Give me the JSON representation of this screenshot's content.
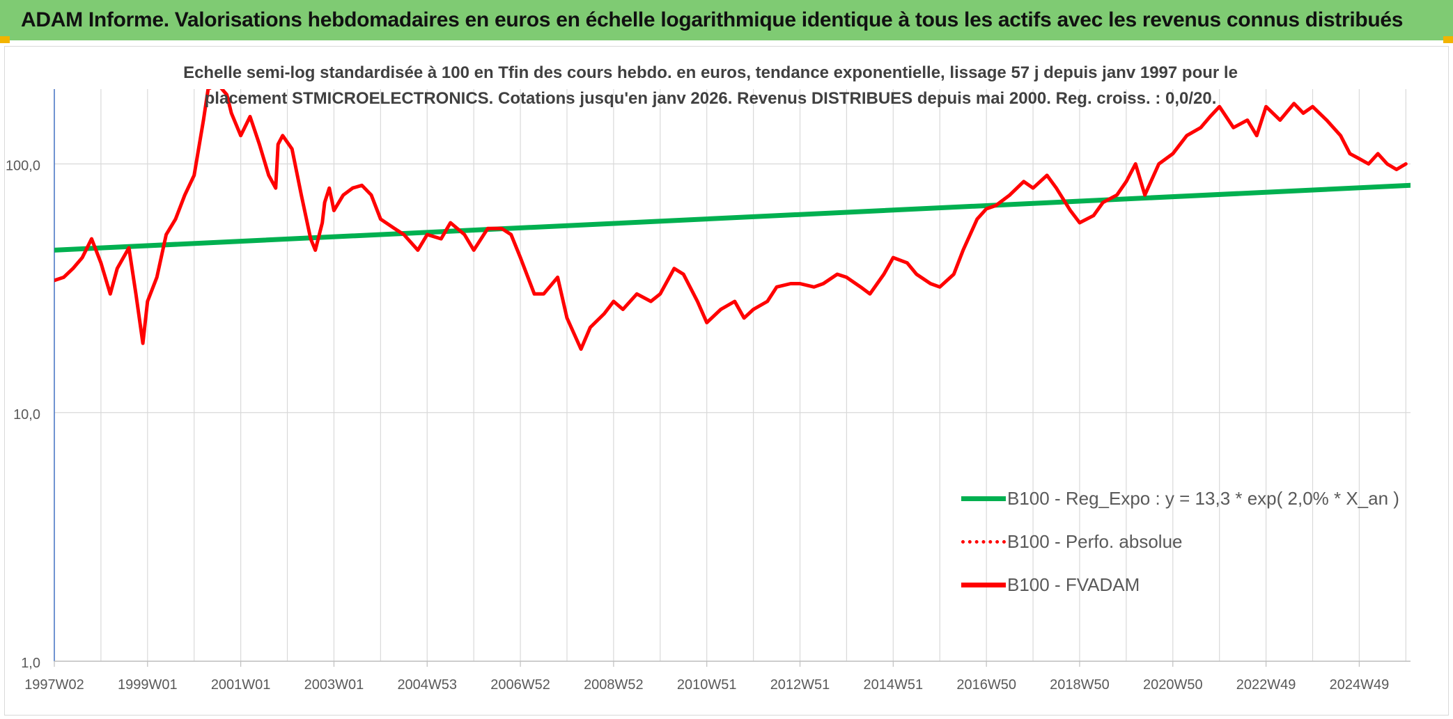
{
  "header": {
    "title": "ADAM Informe. Valorisations hebdomadaires en euros en échelle logarithmique identique à tous les actifs avec les revenus connus distribués"
  },
  "colors": {
    "banner": "#7fcb73",
    "trend": "#00b050",
    "series": "#ff0000",
    "grid": "#d9d9d9",
    "axis": "#4472c4"
  },
  "chart_data": {
    "type": "line",
    "subtitle_line1": "Echelle semi-log standardisée à 100 en Tfin des cours hebdo. en euros, tendance exponentielle, lissage 57 j depuis janv 1997 pour le",
    "subtitle_line2": "placement STMICROELECTRONICS. Cotations jusqu'en janv 2026. Revenus DISTRIBUES depuis mai 2000. Reg. croiss. : 0,0/20.",
    "y_scale": "log",
    "ylim": [
      1,
      200
    ],
    "y_ticks": [
      {
        "value": 1,
        "label": "1,0"
      },
      {
        "value": 10,
        "label": "10,0"
      },
      {
        "value": 100,
        "label": "100,0"
      }
    ],
    "xlim": [
      1997.0,
      2026.1
    ],
    "x_ticks": [
      {
        "value": 1997.0,
        "label": "1997W02"
      },
      {
        "value": 1999.0,
        "label": "1999W01"
      },
      {
        "value": 2001.0,
        "label": "2001W01"
      },
      {
        "value": 2003.0,
        "label": "2003W01"
      },
      {
        "value": 2005.0,
        "label": "2004W53"
      },
      {
        "value": 2007.0,
        "label": "2006W52"
      },
      {
        "value": 2009.0,
        "label": "2008W52"
      },
      {
        "value": 2011.0,
        "label": "2010W51"
      },
      {
        "value": 2013.0,
        "label": "2012W51"
      },
      {
        "value": 2015.0,
        "label": "2014W51"
      },
      {
        "value": 2017.0,
        "label": "2016W50"
      },
      {
        "value": 2019.0,
        "label": "2018W50"
      },
      {
        "value": 2021.0,
        "label": "2020W50"
      },
      {
        "value": 2023.0,
        "label": "2022W49"
      },
      {
        "value": 2025.0,
        "label": "2024W49"
      }
    ],
    "legend": [
      {
        "name": "B100 - Reg_Expo : y = 13,3 * exp( 2,0% *  X_an )",
        "style": "solid",
        "color": "#00b050"
      },
      {
        "name": "B100 - Perfo. absolue",
        "style": "dotted",
        "color": "#ff0000"
      },
      {
        "name": "B100 - FVADAM",
        "style": "solid",
        "color": "#ff0000"
      }
    ],
    "series": [
      {
        "name": "B100 - Reg_Expo",
        "color": "#00b050",
        "x": [
          1997.0,
          2026.1
        ],
        "y": [
          45,
          82
        ]
      },
      {
        "name": "B100 - FVADAM",
        "color": "#ff0000",
        "x": [
          1997.0,
          1997.2,
          1997.4,
          1997.6,
          1997.8,
          1998.0,
          1998.2,
          1998.35,
          1998.6,
          1998.75,
          1998.9,
          1999.0,
          1999.2,
          1999.4,
          1999.6,
          1999.8,
          2000.0,
          2000.2,
          2000.3,
          2000.5,
          2000.7,
          2000.8,
          2001.0,
          2001.2,
          2001.4,
          2001.6,
          2001.75,
          2001.8,
          2001.9,
          2002.1,
          2002.3,
          2002.5,
          2002.6,
          2002.75,
          2002.8,
          2002.9,
          2003.0,
          2003.2,
          2003.4,
          2003.6,
          2003.8,
          2004.0,
          2004.3,
          2004.5,
          2004.8,
          2005.0,
          2005.3,
          2005.5,
          2005.8,
          2006.0,
          2006.3,
          2006.6,
          2006.8,
          2007.0,
          2007.3,
          2007.5,
          2007.8,
          2008.0,
          2008.3,
          2008.5,
          2008.8,
          2009.0,
          2009.2,
          2009.5,
          2009.8,
          2010.0,
          2010.3,
          2010.5,
          2010.8,
          2011.0,
          2011.3,
          2011.6,
          2011.8,
          2012.0,
          2012.3,
          2012.5,
          2012.8,
          2013.0,
          2013.3,
          2013.5,
          2013.8,
          2014.0,
          2014.3,
          2014.5,
          2014.8,
          2015.0,
          2015.3,
          2015.5,
          2015.8,
          2016.0,
          2016.3,
          2016.5,
          2016.8,
          2017.0,
          2017.2,
          2017.5,
          2017.8,
          2018.0,
          2018.3,
          2018.5,
          2018.8,
          2019.0,
          2019.3,
          2019.5,
          2019.8,
          2020.0,
          2020.2,
          2020.4,
          2020.7,
          2021.0,
          2021.3,
          2021.6,
          2021.8,
          2022.0,
          2022.3,
          2022.6,
          2022.8,
          2023.0,
          2023.3,
          2023.6,
          2023.8,
          2024.0,
          2024.3,
          2024.6,
          2024.8,
          2025.0,
          2025.2,
          2025.4,
          2025.6,
          2025.8,
          2026.0
        ],
        "y": [
          34,
          35,
          38,
          42,
          50,
          40,
          30,
          38,
          46,
          30,
          19,
          28,
          35,
          52,
          60,
          75,
          90,
          150,
          200,
          210,
          190,
          160,
          130,
          155,
          120,
          90,
          80,
          120,
          130,
          115,
          75,
          50,
          45,
          58,
          70,
          80,
          65,
          75,
          80,
          82,
          75,
          60,
          55,
          52,
          45,
          52,
          50,
          58,
          52,
          45,
          55,
          55,
          52,
          42,
          30,
          30,
          35,
          24,
          18,
          22,
          25,
          28,
          26,
          30,
          28,
          30,
          38,
          36,
          28,
          23,
          26,
          28,
          24,
          26,
          28,
          32,
          33,
          33,
          32,
          33,
          36,
          35,
          32,
          30,
          36,
          42,
          40,
          36,
          33,
          32,
          36,
          45,
          60,
          66,
          68,
          75,
          85,
          80,
          90,
          80,
          65,
          58,
          62,
          70,
          75,
          85,
          100,
          75,
          100,
          110,
          130,
          140,
          155,
          170,
          140,
          150,
          130,
          170,
          150,
          175,
          160,
          170,
          150,
          130,
          110,
          105,
          100,
          110,
          100,
          95,
          100
        ]
      }
    ]
  }
}
